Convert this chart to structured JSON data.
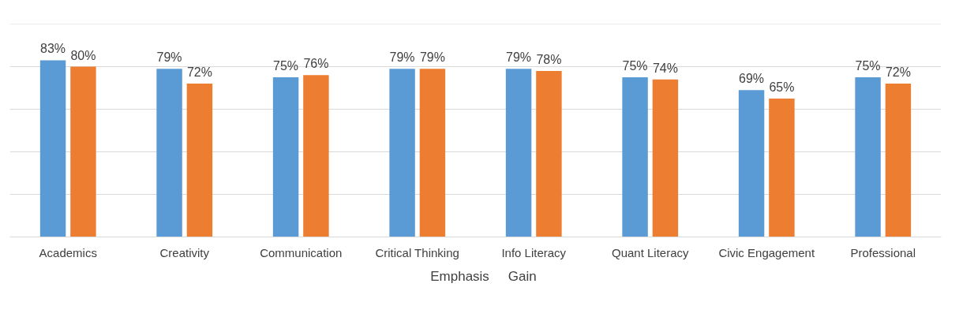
{
  "chart_data": {
    "type": "bar",
    "categories": [
      "Academics",
      "Creativity",
      "Communication",
      "Critical Thinking",
      "Info Literacy",
      "Quant Literacy",
      "Civic Engagement",
      "Professional"
    ],
    "series": [
      {
        "name": "Emphasis",
        "color": "#5b9bd5",
        "values": [
          83,
          79,
          75,
          79,
          79,
          75,
          69,
          75
        ],
        "value_labels": [
          "83%",
          "79%",
          "75%",
          "79%",
          "79%",
          "75%",
          "69%",
          "75%"
        ]
      },
      {
        "name": "Gain",
        "color": "#ed7d31",
        "values": [
          80,
          72,
          76,
          79,
          78,
          74,
          65,
          72
        ],
        "value_labels": [
          "80%",
          "72%",
          "76%",
          "79%",
          "78%",
          "74%",
          "65%",
          "72%"
        ]
      }
    ],
    "ylim": [
      0,
      100
    ],
    "yticks": [
      {
        "value": 0,
        "label": null
      },
      {
        "value": 20,
        "label": null
      },
      {
        "value": 40,
        "label": null
      },
      {
        "value": 60,
        "label": null
      },
      {
        "value": 80,
        "label": null
      },
      {
        "value": 100,
        "label": null
      }
    ],
    "grid": "y",
    "legend": "bottom",
    "tick_labels": "x"
  }
}
